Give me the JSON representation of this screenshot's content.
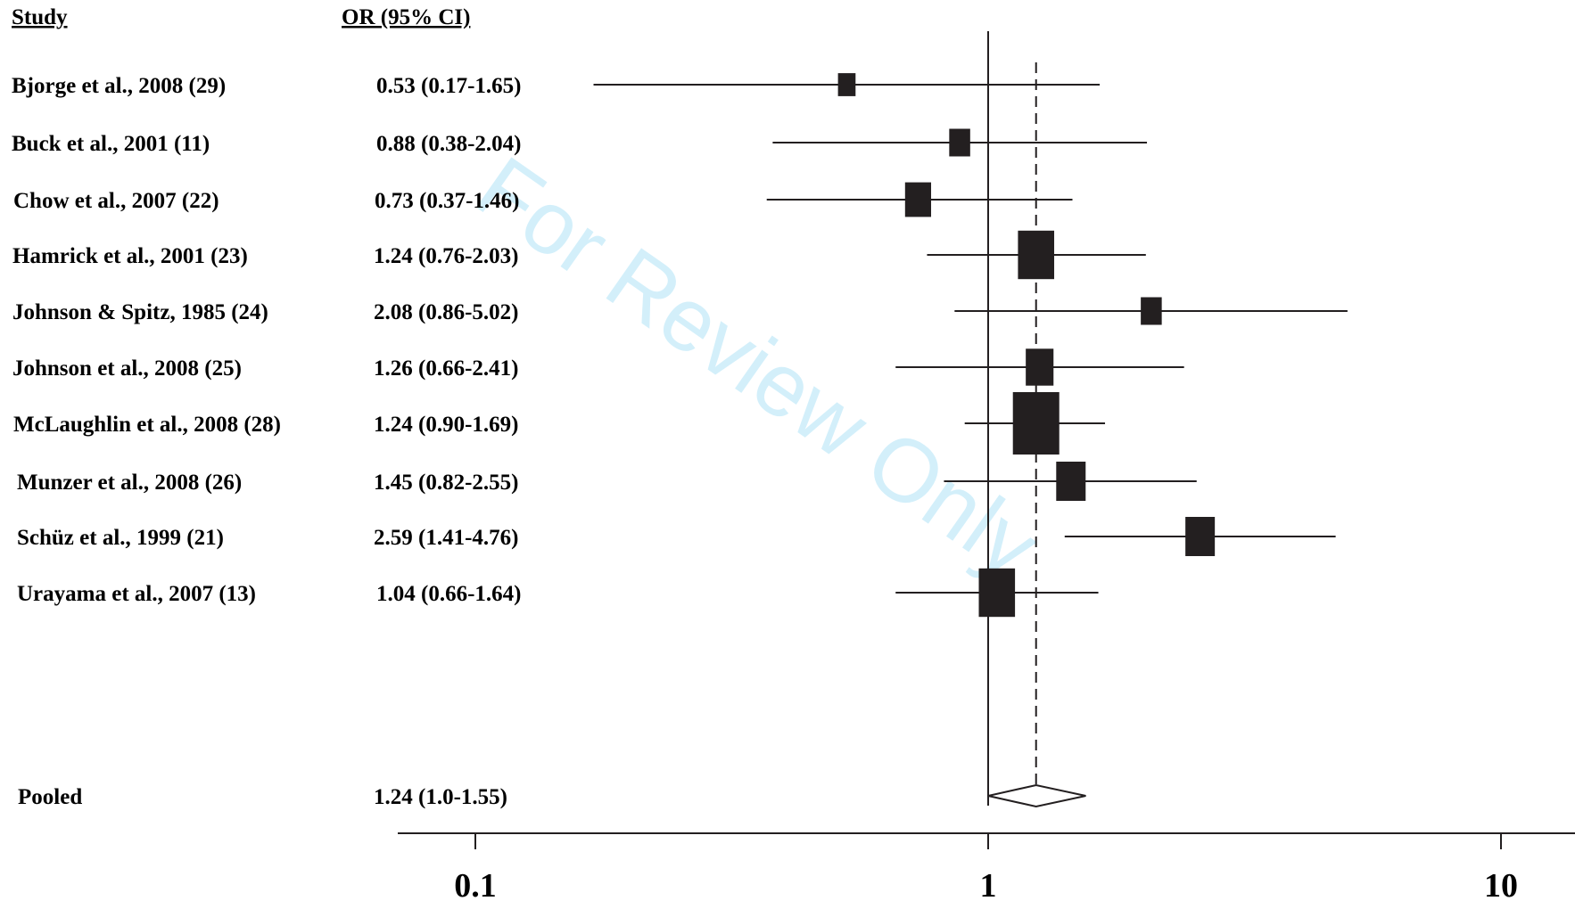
{
  "chart_data": {
    "type": "forest",
    "x_scale": "log",
    "xlim": [
      0.05,
      25
    ],
    "x_ticks": [
      "0.1",
      "1",
      "10"
    ],
    "column_headers": {
      "study": "Study",
      "or": "OR (95% CI)"
    },
    "studies": [
      {
        "label": "Bjorge et al., 2008 (29)",
        "or_text": "0.53 (0.17-1.65)",
        "or": 0.53,
        "lo": 0.17,
        "hi": 1.65,
        "weight": 0.15
      },
      {
        "label": "Buck et al., 2001 (11)",
        "or_text": "0.88 (0.38-2.04)",
        "or": 0.88,
        "lo": 0.38,
        "hi": 2.04,
        "weight": 0.25
      },
      {
        "label": "Chow et al., 2007 (22)",
        "or_text": "0.73 (0.37-1.46)",
        "or": 0.73,
        "lo": 0.37,
        "hi": 1.46,
        "weight": 0.4
      },
      {
        "label": "Hamrick et al., 2001 (23)",
        "or_text": "1.24 (0.76-2.03)",
        "or": 1.24,
        "lo": 0.76,
        "hi": 2.03,
        "weight": 0.7
      },
      {
        "label": "Johnson & Spitz, 1985 (24)",
        "or_text": "2.08 (0.86-5.02)",
        "or": 2.08,
        "lo": 0.86,
        "hi": 5.02,
        "weight": 0.25
      },
      {
        "label": "Johnson et al., 2008 (25)",
        "or_text": "1.26 (0.66-2.41)",
        "or": 1.26,
        "lo": 0.66,
        "hi": 2.41,
        "weight": 0.45
      },
      {
        "label": "McLaughlin et al., 2008 (28)",
        "or_text": "1.24 (0.90-1.69)",
        "or": 1.24,
        "lo": 0.9,
        "hi": 1.69,
        "weight": 1.0
      },
      {
        "label": "Munzer et al., 2008 (26)",
        "or_text": "1.45 (0.82-2.55)",
        "or": 1.45,
        "lo": 0.82,
        "hi": 2.55,
        "weight": 0.5
      },
      {
        "label": "Schüz et al., 1999 (21)",
        "or_text": "2.59 (1.41-4.76)",
        "or": 2.59,
        "lo": 1.41,
        "hi": 4.76,
        "weight": 0.5
      },
      {
        "label": "Urayama et al., 2007 (13)",
        "or_text": "1.04 (0.66-1.64)",
        "or": 1.04,
        "lo": 0.66,
        "hi": 1.64,
        "weight": 0.7
      }
    ],
    "pooled": {
      "label": "Pooled",
      "or_text": "1.24 (1.0-1.55)",
      "or": 1.24,
      "lo": 1.0,
      "hi": 1.55
    },
    "reference_line": 1,
    "pooled_line": 1.24
  },
  "watermark": "For Review Only",
  "colors": {
    "ink": "#231f20",
    "watermark": "#c9ecfa"
  }
}
